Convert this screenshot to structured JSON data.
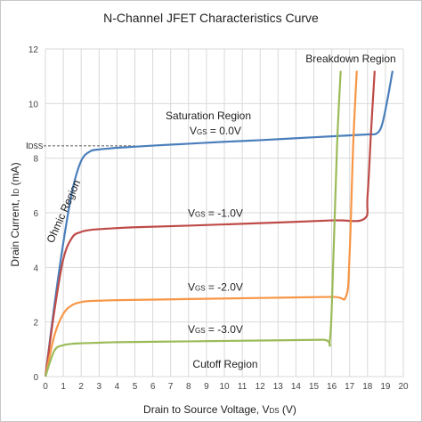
{
  "chart_data": {
    "type": "line",
    "title": "N-Channel JFET Characteristics Curve",
    "xlabel": "Drain to Source Voltage, V",
    "xlabel_sub": "DS",
    "xlabel_unit": " (V)",
    "ylabel": "Drain Current, I",
    "ylabel_sub": "D",
    "ylabel_unit": " (mA)",
    "xlim": [
      0,
      20
    ],
    "ylim": [
      0,
      12
    ],
    "x_ticks": [
      "0",
      "1",
      "2",
      "3",
      "4",
      "5",
      "6",
      "7",
      "8",
      "9",
      "10",
      "11",
      "12",
      "13",
      "14",
      "15",
      "16",
      "17",
      "18",
      "19",
      "20"
    ],
    "y_ticks": [
      "0",
      "2",
      "4",
      "6",
      "8",
      "10",
      "12"
    ],
    "grid": "major",
    "idss_label": "IDSS",
    "idss_value": 8.45,
    "series": [
      {
        "name": "VGS = 0.0V",
        "label_main": "V",
        "label_sub": "GS",
        "label_rest": " = 0.0V",
        "color": "#4a7ebb",
        "x": [
          0,
          0.5,
          1.0,
          1.5,
          2.0,
          2.5,
          3.0,
          3.5,
          4.0,
          6.0,
          8.0,
          10.0,
          12.0,
          14.0,
          16.0,
          18.0,
          18.5,
          18.8,
          19.1,
          19.4
        ],
        "y": [
          0,
          2.6,
          4.9,
          6.8,
          7.9,
          8.25,
          8.32,
          8.35,
          8.38,
          8.46,
          8.53,
          8.6,
          8.66,
          8.73,
          8.8,
          8.87,
          8.9,
          9.2,
          10.1,
          11.2
        ]
      },
      {
        "name": "VGS = -1.0V",
        "label_main": "V",
        "label_sub": "GS",
        "label_rest": " = -1.0V",
        "color": "#be4b48",
        "x": [
          0,
          0.5,
          1.0,
          1.5,
          2.0,
          2.5,
          3.0,
          3.5,
          5.0,
          8.0,
          12.0,
          16.0,
          17.8,
          18.0,
          18.2,
          18.4
        ],
        "y": [
          0,
          2.4,
          4.3,
          5.1,
          5.3,
          5.37,
          5.4,
          5.42,
          5.47,
          5.53,
          5.62,
          5.72,
          5.77,
          6.6,
          9.0,
          11.2
        ]
      },
      {
        "name": "VGS = -2.0V",
        "label_main": "V",
        "label_sub": "GS",
        "label_rest": " = -2.0V",
        "color": "#f79646",
        "x": [
          0,
          0.5,
          1.0,
          1.5,
          2.0,
          2.5,
          3.0,
          4.0,
          8.0,
          12.0,
          16.0,
          16.8,
          17.0,
          17.2,
          17.4
        ],
        "y": [
          0,
          1.5,
          2.3,
          2.62,
          2.73,
          2.77,
          2.78,
          2.8,
          2.84,
          2.88,
          2.92,
          2.94,
          4.5,
          8.5,
          11.2
        ]
      },
      {
        "name": "VGS = -3.0V",
        "label_main": "V",
        "label_sub": "GS",
        "label_rest": " = -3.0V",
        "color": "#9bbb59",
        "x": [
          0,
          0.5,
          1.0,
          1.5,
          2.0,
          3.0,
          4.0,
          8.0,
          12.0,
          15.5,
          15.9,
          16.1,
          16.3,
          16.5
        ],
        "y": [
          0,
          0.95,
          1.15,
          1.2,
          1.22,
          1.24,
          1.26,
          1.29,
          1.32,
          1.35,
          1.36,
          4.5,
          8.5,
          11.2
        ]
      }
    ],
    "annotations": {
      "breakdown": "Breakdown Region",
      "saturation": "Saturation Region",
      "ohmic": "Ohmic Region",
      "cutoff": "Cutoff Region"
    }
  }
}
